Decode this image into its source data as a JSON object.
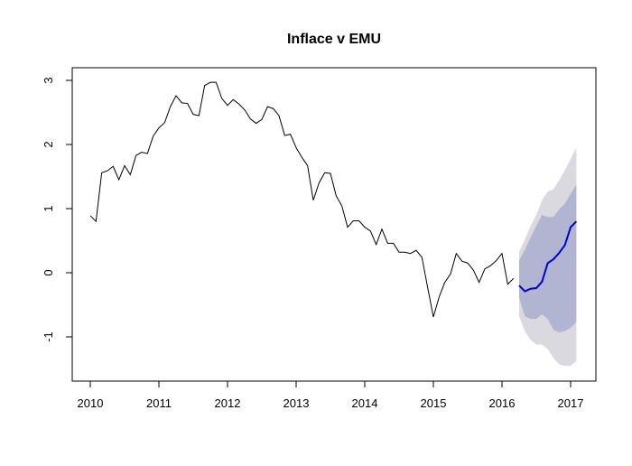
{
  "chart_data": {
    "type": "line",
    "title": "Inflace v EMU",
    "xlabel": "",
    "ylabel": "",
    "xlim": [
      2009.75,
      2017.3
    ],
    "ylim": [
      -1.6,
      3.2
    ],
    "x_ticks": [
      "2010",
      "2011",
      "2012",
      "2013",
      "2014",
      "2015",
      "2016",
      "2017"
    ],
    "y_ticks": [
      "-1",
      "0",
      "1",
      "2",
      "3"
    ],
    "grid": false,
    "colors": {
      "observed": "#000000",
      "forecast": "#0000cd",
      "band80": "#b1b5d1",
      "band95": "#d9d9df"
    },
    "observed": {
      "start": 2010,
      "frequency": 12,
      "values": [
        0.89,
        0.8,
        1.56,
        1.59,
        1.66,
        1.45,
        1.67,
        1.53,
        1.83,
        1.88,
        1.86,
        2.13,
        2.26,
        2.34,
        2.59,
        2.76,
        2.65,
        2.64,
        2.47,
        2.45,
        2.92,
        2.97,
        2.97,
        2.72,
        2.61,
        2.7,
        2.63,
        2.54,
        2.4,
        2.33,
        2.39,
        2.59,
        2.56,
        2.45,
        2.14,
        2.16,
        1.95,
        1.8,
        1.67,
        1.13,
        1.4,
        1.56,
        1.55,
        1.2,
        1.04,
        0.71,
        0.81,
        0.81,
        0.71,
        0.65,
        0.44,
        0.68,
        0.46,
        0.46,
        0.32,
        0.32,
        0.3,
        0.35,
        0.24,
        -0.23,
        -0.69,
        -0.38,
        -0.15,
        -0.02,
        0.3,
        0.18,
        0.15,
        0.04,
        -0.15,
        0.06,
        0.11,
        0.19,
        0.3,
        -0.18,
        -0.09
      ]
    },
    "forecast": {
      "start": 2016.25,
      "frequency": 12,
      "mean": [
        -0.2,
        -0.29,
        -0.25,
        -0.24,
        -0.14,
        0.15,
        0.21,
        0.31,
        0.43,
        0.71,
        0.8
      ],
      "lo80": [
        -0.39,
        -0.68,
        -0.72,
        -0.72,
        -0.65,
        -0.72,
        -0.89,
        -0.93,
        -0.91,
        -0.86,
        -0.77
      ],
      "hi80": [
        0.19,
        0.36,
        0.55,
        0.73,
        0.9,
        0.87,
        0.87,
        0.99,
        1.08,
        1.23,
        1.37
      ],
      "lo95": [
        -0.68,
        -0.91,
        -1.05,
        -1.12,
        -1.12,
        -1.19,
        -1.33,
        -1.43,
        -1.45,
        -1.45,
        -1.38
      ],
      "hi95": [
        0.33,
        0.52,
        0.73,
        0.9,
        1.13,
        1.27,
        1.3,
        1.44,
        1.6,
        1.77,
        1.95
      ]
    }
  }
}
